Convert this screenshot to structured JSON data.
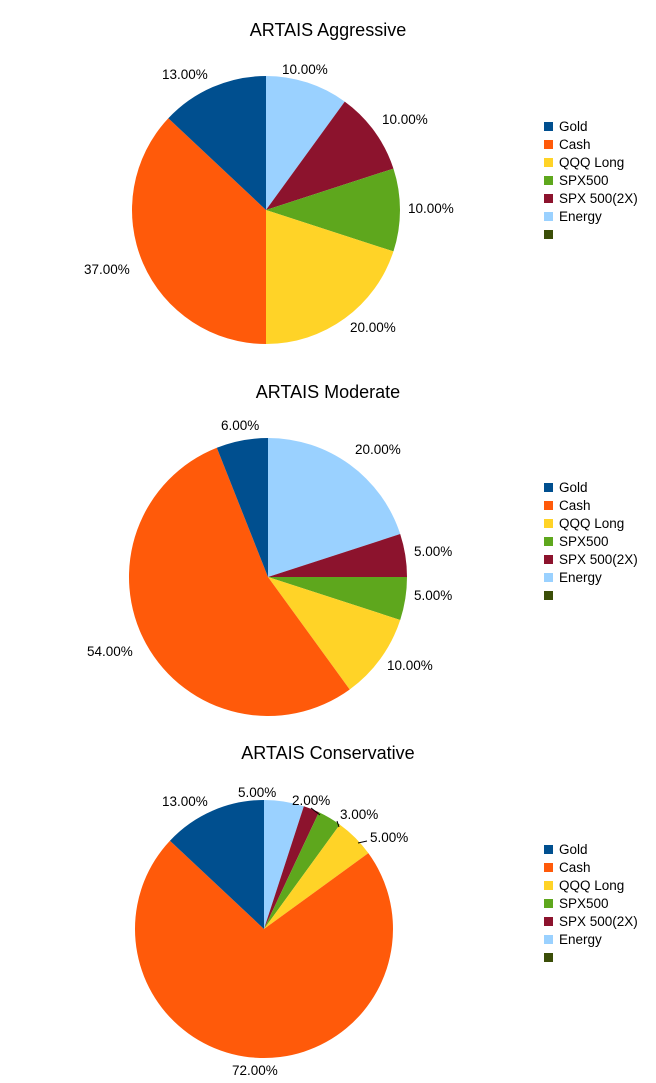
{
  "colors": {
    "Gold": "#004f8f",
    "Cash": "#ff5a0a",
    "QQQ Long": "#ffd327",
    "SPX500": "#5ea71d",
    "SPX 500(2X)": "#8c132d",
    "Energy": "#9ad1ff",
    "blank": "#3b4e08"
  },
  "chart_data": [
    {
      "type": "pie",
      "title": "ARTAIS Aggressive",
      "legend_position": "right",
      "legend": [
        "Gold",
        "Cash",
        "QQQ Long",
        "SPX500",
        "SPX 500(2X)",
        "Energy",
        ""
      ],
      "slices": [
        {
          "name": "Energy",
          "value": 10,
          "label": "10.00%"
        },
        {
          "name": "SPX 500(2X)",
          "value": 10,
          "label": "10.00%"
        },
        {
          "name": "SPX500",
          "value": 10,
          "label": "10.00%"
        },
        {
          "name": "QQQ Long",
          "value": 20,
          "label": "20.00%"
        },
        {
          "name": "Cash",
          "value": 37,
          "label": "37.00%"
        },
        {
          "name": "Gold",
          "value": 13,
          "label": "13.00%"
        }
      ]
    },
    {
      "type": "pie",
      "title": "ARTAIS Moderate",
      "legend_position": "right",
      "legend": [
        "Gold",
        "Cash",
        "QQQ Long",
        "SPX500",
        "SPX 500(2X)",
        "Energy",
        ""
      ],
      "slices": [
        {
          "name": "Energy",
          "value": 20,
          "label": "20.00%"
        },
        {
          "name": "SPX 500(2X)",
          "value": 5,
          "label": "5.00%"
        },
        {
          "name": "SPX500",
          "value": 5,
          "label": "5.00%"
        },
        {
          "name": "QQQ Long",
          "value": 10,
          "label": "10.00%"
        },
        {
          "name": "Cash",
          "value": 54,
          "label": "54.00%"
        },
        {
          "name": "Gold",
          "value": 6,
          "label": "6.00%"
        }
      ]
    },
    {
      "type": "pie",
      "title": "ARTAIS Conservative",
      "legend_position": "right",
      "legend": [
        "Gold",
        "Cash",
        "QQQ Long",
        "SPX500",
        "SPX 500(2X)",
        "Energy",
        ""
      ],
      "slices": [
        {
          "name": "Energy",
          "value": 5,
          "label": "5.00%"
        },
        {
          "name": "SPX 500(2X)",
          "value": 2,
          "label": "2.00%"
        },
        {
          "name": "SPX500",
          "value": 3,
          "label": "3.00%"
        },
        {
          "name": "QQQ Long",
          "value": 5,
          "label": "5.00%"
        },
        {
          "name": "Cash",
          "value": 72,
          "label": "72.00%"
        },
        {
          "name": "Gold",
          "value": 13,
          "label": "13.00%"
        }
      ]
    }
  ]
}
